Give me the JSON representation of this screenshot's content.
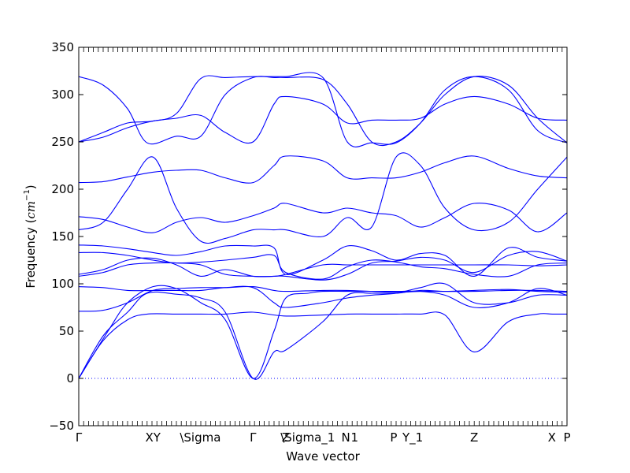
{
  "chart_data": {
    "type": "line",
    "xlabel": "Wave vector",
    "ylabel": "Frequency ($cm^{-1}$)",
    "ylabel_text": "Frequency (",
    "ylabel_unit": "cm",
    "ylabel_exp": "−1",
    "ylabel_close": ")",
    "ylim": [
      -50,
      350
    ],
    "yticks": [
      -50,
      0,
      50,
      100,
      150,
      200,
      250,
      300,
      350
    ],
    "xlim": [
      0,
      1
    ],
    "grid": false,
    "line_color": "#0000ff",
    "zero_line": {
      "y": 0,
      "style": "dotted"
    },
    "high_symmetry_points": [
      {
        "label": "Γ",
        "x": 0.0
      },
      {
        "label": "XY",
        "x": 0.152
      },
      {
        "label": "\\Sigma",
        "x": 0.249
      },
      {
        "label": "Γ",
        "x": 0.357
      },
      {
        "label": "Z",
        "x": 0.424
      },
      {
        "label": "\\Sigma_1",
        "x": 0.469
      },
      {
        "label": "N",
        "x": 0.547
      },
      {
        "label": "1",
        "x": 0.565
      },
      {
        "label": "P",
        "x": 0.645
      },
      {
        "label": "Y_1",
        "x": 0.684
      },
      {
        "label": "Z",
        "x": 0.81
      },
      {
        "label": "X",
        "x": 0.969
      },
      {
        "label": "P",
        "x": 1.0
      }
    ],
    "minor_tick_count": 100,
    "series": [
      {
        "x": [
          0,
          0.05,
          0.1,
          0.14,
          0.2,
          0.25,
          0.3,
          0.357,
          0.42,
          0.5,
          0.55,
          0.6,
          0.65,
          0.7,
          0.75,
          0.81,
          0.88,
          0.94,
          0.97,
          1.0
        ],
        "y": [
          0,
          40,
          62,
          68,
          68,
          68,
          68,
          70,
          66,
          67,
          68,
          68,
          68,
          68,
          67,
          28,
          60,
          68,
          68,
          68
        ]
      },
      {
        "x": [
          0,
          0.05,
          0.1,
          0.14,
          0.2,
          0.25,
          0.3,
          0.357,
          0.4,
          0.424,
          0.5,
          0.55,
          0.6,
          0.65,
          0.7,
          0.75,
          0.81,
          0.88,
          0.94,
          1.0
        ],
        "y": [
          0,
          45,
          70,
          90,
          89,
          85,
          70,
          0,
          28,
          30,
          60,
          88,
          90,
          90,
          93,
          92,
          92,
          93,
          93,
          92
        ]
      },
      {
        "x": [
          0,
          0.06,
          0.1,
          0.152,
          0.2,
          0.25,
          0.3,
          0.357,
          0.4,
          0.424,
          0.47,
          0.5,
          0.55,
          0.6,
          0.65,
          0.7,
          0.75,
          0.81,
          0.88,
          0.94,
          1.0
        ],
        "y": [
          0,
          50,
          80,
          97,
          95,
          80,
          62,
          0,
          50,
          85,
          90,
          92,
          92,
          92,
          92,
          92,
          88,
          75,
          80,
          95,
          88
        ]
      },
      {
        "x": [
          0,
          0.05,
          0.1,
          0.152,
          0.2,
          0.25,
          0.3,
          0.357,
          0.4,
          0.424,
          0.5,
          0.55,
          0.6,
          0.65,
          0.7,
          0.75,
          0.81,
          0.88,
          0.94,
          1.0
        ],
        "y": [
          71,
          72,
          80,
          93,
          95,
          96,
          96,
          97,
          93,
          92,
          93,
          93,
          92,
          91,
          92,
          92,
          93,
          94,
          92,
          91
        ]
      },
      {
        "x": [
          0,
          0.05,
          0.1,
          0.152,
          0.2,
          0.25,
          0.3,
          0.357,
          0.4,
          0.424,
          0.5,
          0.55,
          0.6,
          0.65,
          0.7,
          0.75,
          0.81,
          0.88,
          0.94,
          1.0
        ],
        "y": [
          97,
          96,
          93,
          93,
          93,
          93,
          96,
          96,
          80,
          75,
          80,
          85,
          88,
          90,
          96,
          100,
          80,
          80,
          88,
          88
        ]
      },
      {
        "x": [
          0,
          0.05,
          0.1,
          0.152,
          0.2,
          0.25,
          0.3,
          0.357,
          0.4,
          0.424,
          0.5,
          0.55,
          0.6,
          0.65,
          0.7,
          0.75,
          0.81,
          0.88,
          0.94,
          1.0
        ],
        "y": [
          108,
          112,
          120,
          122,
          122,
          120,
          110,
          108,
          108,
          110,
          120,
          120,
          120,
          120,
          120,
          120,
          120,
          120,
          119,
          120
        ]
      },
      {
        "x": [
          0,
          0.05,
          0.1,
          0.152,
          0.2,
          0.25,
          0.3,
          0.357,
          0.4,
          0.424,
          0.5,
          0.55,
          0.6,
          0.65,
          0.7,
          0.75,
          0.81,
          0.88,
          0.94,
          1.0
        ],
        "y": [
          110,
          115,
          125,
          127,
          120,
          108,
          115,
          108,
          108,
          108,
          104,
          110,
          122,
          124,
          128,
          125,
          112,
          130,
          134,
          124
        ]
      },
      {
        "x": [
          0,
          0.05,
          0.1,
          0.152,
          0.2,
          0.25,
          0.3,
          0.357,
          0.4,
          0.424,
          0.5,
          0.55,
          0.6,
          0.65,
          0.7,
          0.75,
          0.81,
          0.88,
          0.94,
          1.0
        ],
        "y": [
          133,
          133,
          130,
          125,
          122,
          123,
          125,
          128,
          130,
          112,
          105,
          118,
          125,
          123,
          118,
          116,
          110,
          108,
          120,
          122
        ]
      },
      {
        "x": [
          0,
          0.05,
          0.1,
          0.152,
          0.2,
          0.25,
          0.3,
          0.357,
          0.4,
          0.424,
          0.5,
          0.55,
          0.6,
          0.65,
          0.7,
          0.75,
          0.81,
          0.88,
          0.94,
          1.0
        ],
        "y": [
          141,
          140,
          137,
          133,
          130,
          134,
          140,
          140,
          138,
          110,
          125,
          140,
          135,
          125,
          132,
          130,
          108,
          138,
          128,
          124
        ]
      },
      {
        "x": [
          0,
          0.05,
          0.1,
          0.152,
          0.2,
          0.25,
          0.3,
          0.357,
          0.4,
          0.424,
          0.5,
          0.55,
          0.6,
          0.65,
          0.7,
          0.75,
          0.81,
          0.88,
          0.94,
          1.0
        ],
        "y": [
          171,
          168,
          160,
          154,
          165,
          170,
          165,
          172,
          180,
          185,
          175,
          180,
          175,
          172,
          160,
          170,
          185,
          178,
          155,
          175
        ]
      },
      {
        "x": [
          0,
          0.05,
          0.1,
          0.152,
          0.2,
          0.25,
          0.3,
          0.357,
          0.4,
          0.424,
          0.5,
          0.55,
          0.6,
          0.65,
          0.7,
          0.75,
          0.81,
          0.88,
          0.94,
          1.0
        ],
        "y": [
          157,
          165,
          200,
          234,
          180,
          145,
          148,
          157,
          157,
          157,
          150,
          170,
          160,
          234,
          225,
          180,
          157,
          165,
          200,
          234
        ]
      },
      {
        "x": [
          0,
          0.05,
          0.1,
          0.152,
          0.2,
          0.25,
          0.3,
          0.357,
          0.4,
          0.424,
          0.5,
          0.55,
          0.6,
          0.65,
          0.7,
          0.75,
          0.81,
          0.88,
          0.94,
          1.0
        ],
        "y": [
          207,
          208,
          213,
          218,
          220,
          220,
          212,
          207,
          225,
          235,
          230,
          212,
          212,
          212,
          218,
          228,
          235,
          222,
          214,
          212
        ]
      },
      {
        "x": [
          0,
          0.05,
          0.1,
          0.152,
          0.2,
          0.25,
          0.3,
          0.357,
          0.4,
          0.424,
          0.5,
          0.55,
          0.6,
          0.65,
          0.7,
          0.75,
          0.81,
          0.88,
          0.94,
          1.0
        ],
        "y": [
          250,
          255,
          265,
          272,
          275,
          278,
          260,
          250,
          290,
          298,
          290,
          270,
          273,
          273,
          275,
          290,
          298,
          290,
          275,
          273
        ]
      },
      {
        "x": [
          0,
          0.05,
          0.1,
          0.14,
          0.2,
          0.25,
          0.3,
          0.357,
          0.4,
          0.424,
          0.5,
          0.55,
          0.6,
          0.65,
          0.7,
          0.75,
          0.81,
          0.88,
          0.94,
          1.0
        ],
        "y": [
          319,
          310,
          285,
          249,
          256,
          256,
          300,
          318,
          318,
          318,
          316,
          290,
          250,
          250,
          270,
          300,
          319,
          310,
          275,
          249
        ]
      },
      {
        "x": [
          0,
          0.05,
          0.1,
          0.152,
          0.2,
          0.25,
          0.3,
          0.357,
          0.4,
          0.424,
          0.5,
          0.55,
          0.6,
          0.65,
          0.7,
          0.75,
          0.81,
          0.88,
          0.94,
          1.0
        ],
        "y": [
          250,
          260,
          270,
          272,
          280,
          317,
          318,
          319,
          319,
          319,
          318,
          250,
          249,
          249,
          270,
          305,
          319,
          305,
          262,
          249
        ]
      }
    ]
  }
}
